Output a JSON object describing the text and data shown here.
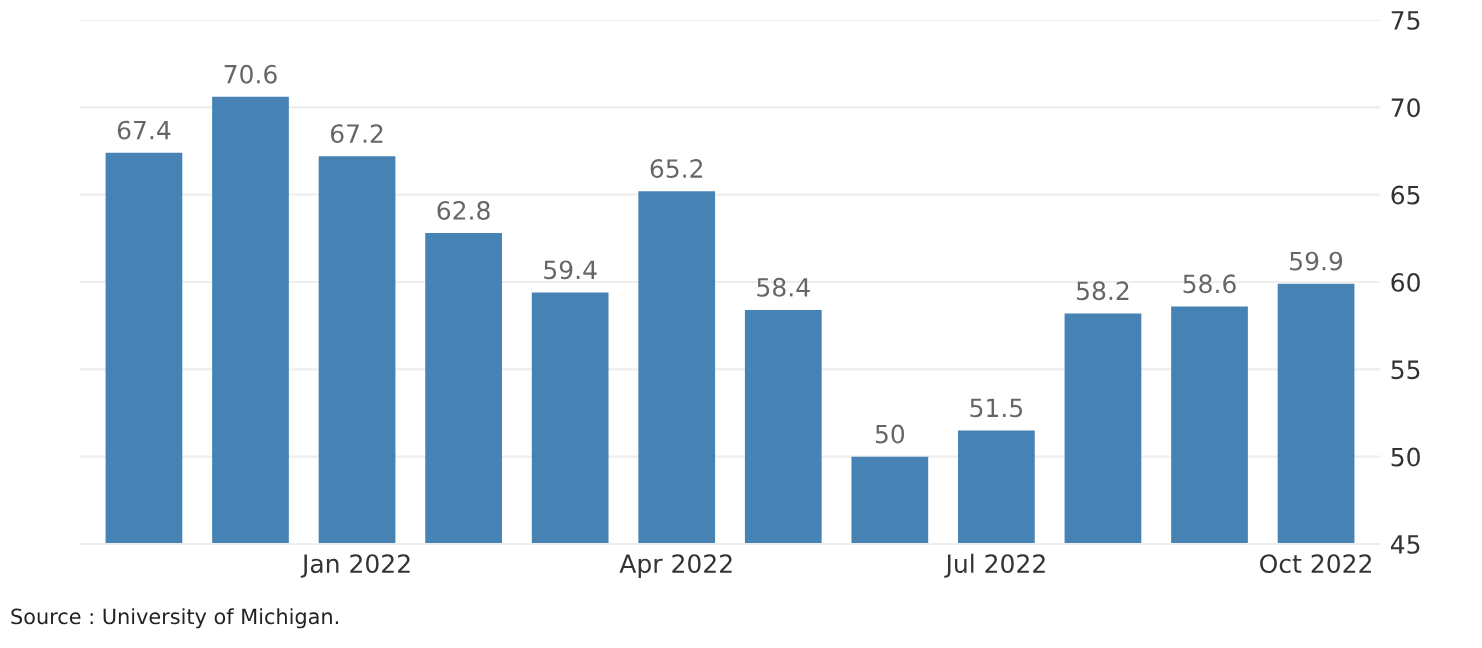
{
  "chart_data": {
    "type": "bar",
    "categories": [
      null,
      null,
      "Jan 2022",
      null,
      null,
      "Apr 2022",
      null,
      null,
      "Jul 2022",
      null,
      null,
      "Oct 2022"
    ],
    "values": [
      67.4,
      70.6,
      67.2,
      62.8,
      59.4,
      65.2,
      58.4,
      50,
      51.5,
      58.2,
      58.6,
      59.9
    ],
    "color": "#4682b4",
    "ylim": [
      45,
      75
    ],
    "yticks": [
      45,
      50,
      55,
      60,
      65,
      70,
      75
    ],
    "grid": "y",
    "data_labels": true,
    "annotations": [
      "Source : University of Michigan."
    ]
  }
}
